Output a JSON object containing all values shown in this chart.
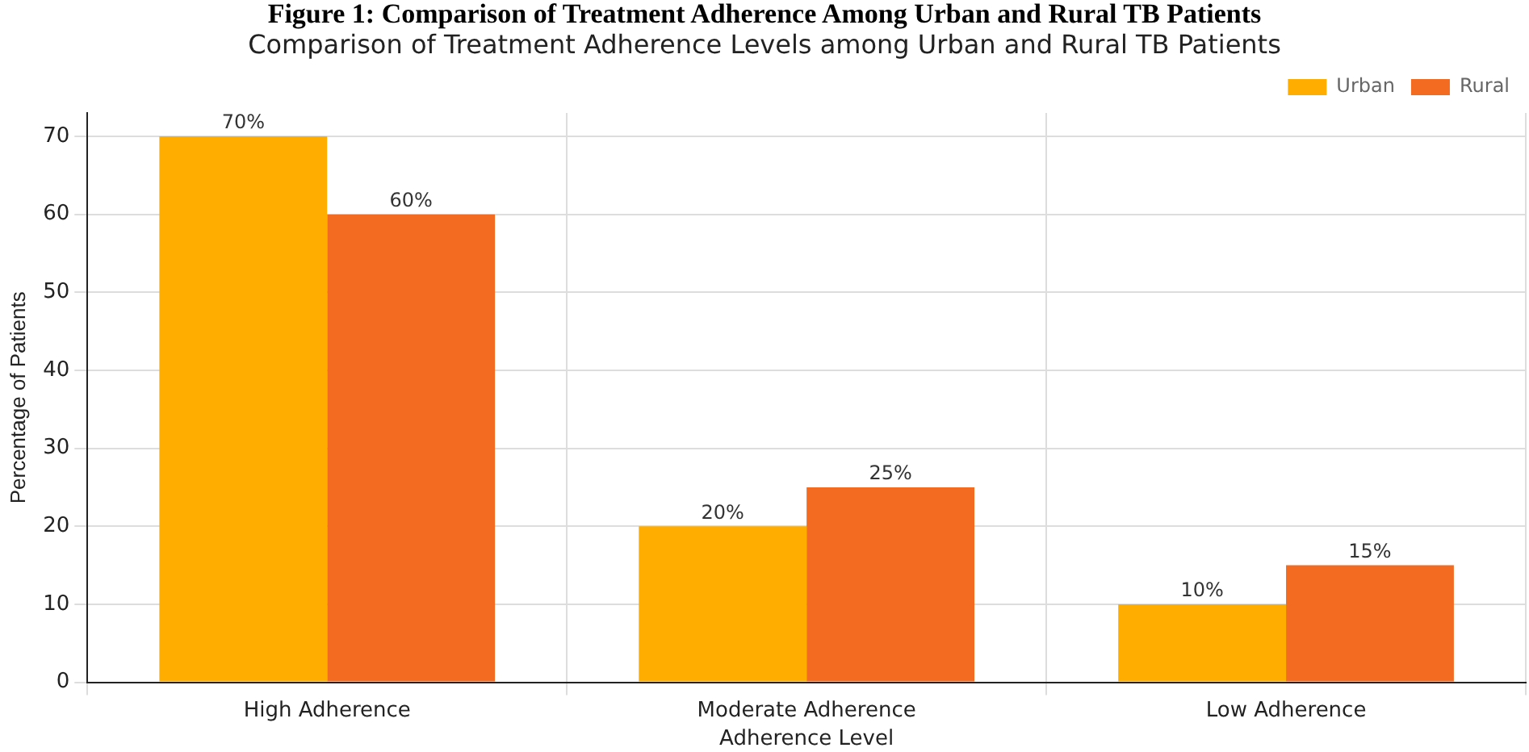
{
  "chart_data": {
    "type": "bar",
    "title": "Figure 1: Comparison of Treatment Adherence Among Urban and Rural TB Patients",
    "subtitle": "Comparison of Treatment Adherence Levels among Urban and Rural TB Patients",
    "xlabel": "Adherence Level",
    "ylabel": "Percentage of Patients",
    "categories": [
      "High Adherence",
      "Moderate Adherence",
      "Low Adherence"
    ],
    "series": [
      {
        "name": "Urban",
        "color": "#ffae00",
        "values": [
          70,
          20,
          10
        ],
        "value_labels": [
          "70%",
          "20%",
          "10%"
        ]
      },
      {
        "name": "Rural",
        "color": "#f26b21",
        "values": [
          60,
          25,
          15
        ],
        "value_labels": [
          "60%",
          "25%",
          "15%"
        ]
      }
    ],
    "ylim": [
      0,
      73
    ],
    "yticks": [
      0,
      10,
      20,
      30,
      40,
      50,
      60,
      70
    ],
    "grid": true,
    "legend": "top right"
  }
}
